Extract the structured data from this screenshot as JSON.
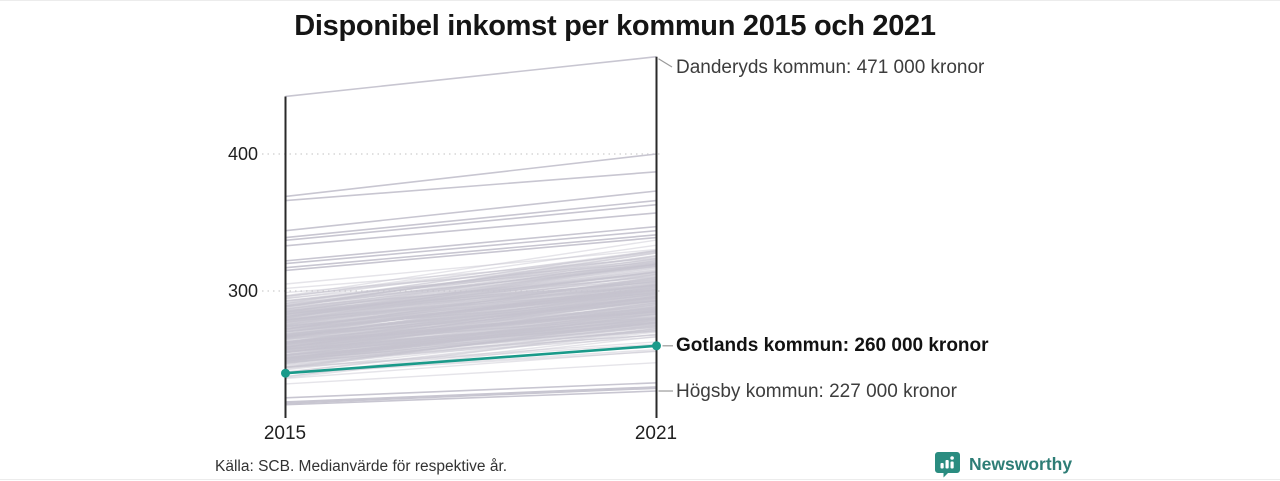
{
  "title": "Disponibel inkomst per kommun 2015 och 2021",
  "footer": {
    "source": "Källa: SCB. Medianvärde för respektive år."
  },
  "logo": {
    "text": "Newsworthy",
    "color": "#2e7d76",
    "icon": "newsworthy-bar-chart-bubble-icon"
  },
  "chart_data": {
    "type": "line",
    "subtype": "slopegraph",
    "title": "Disponibel inkomst per kommun 2015 och 2021",
    "x_categories": [
      "2015",
      "2021"
    ],
    "y_axis": {
      "tick_labels": [
        "400",
        "300"
      ],
      "tick_values": [
        400,
        300
      ],
      "range_approx": [
        207,
        475
      ],
      "grid": "dotted horizontal lines at ticks"
    },
    "legend": "none",
    "highlighted_series": {
      "name": "Gotlands kommun",
      "label": "Gotlands kommun: 260 000 kronor",
      "color": "#1a9a8a",
      "values_tkr": [
        240,
        260
      ],
      "endpoint_dots": true
    },
    "labeled_points": [
      {
        "name": "Danderyds kommun",
        "label": "Danderyds kommun: 471 000 kronor",
        "year": "2021",
        "value_tkr": 471
      },
      {
        "name": "Gotlands kommun",
        "label": "Gotlands kommun: 260 000 kronor",
        "year": "2021",
        "value_tkr": 260
      },
      {
        "name": "Högsby kommun",
        "label": "Högsby kommun: 227 000 kronor",
        "year": "2021",
        "value_tkr": 227
      }
    ],
    "background_series": {
      "description": "Other Swedish municipalities as unlabeled gray slope lines; values in thousands of kronor estimated from pixels",
      "explicit_lines_tkr": [
        [
          442,
          471
        ],
        [
          369,
          400
        ],
        [
          366,
          387
        ],
        [
          344,
          373
        ],
        [
          339,
          366
        ],
        [
          337,
          363
        ],
        [
          333,
          357
        ],
        [
          322,
          347
        ],
        [
          320,
          344
        ],
        [
          317,
          341
        ],
        [
          315,
          339
        ],
        [
          222,
          233
        ],
        [
          219,
          230
        ],
        [
          218,
          229
        ],
        [
          217,
          227
        ]
      ],
      "dense_band_tkr": {
        "count": 268,
        "seed": 7,
        "v2015_min": 222,
        "v2015_span": 88,
        "delta_min": 14,
        "delta_rand": 20,
        "delta_slope": 0.1
      },
      "color": "#c5c3cf",
      "opacity": 0.45,
      "line_width": 1.4
    },
    "style": {
      "axis_color": "#2a2a2a",
      "grid_color": "#d6d6d6",
      "connector_color": "#9a9a9a",
      "accent_color": "#1a9a8a"
    }
  }
}
